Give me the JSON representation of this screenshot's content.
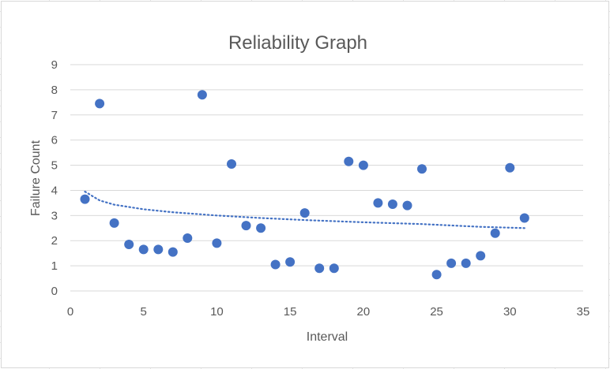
{
  "chart_data": {
    "type": "scatter",
    "title": "Reliability Graph",
    "xlabel": "Interval",
    "ylabel": "Failure Count",
    "xlim": [
      0,
      35
    ],
    "ylim": [
      0,
      9
    ],
    "xticks": [
      0,
      5,
      10,
      15,
      20,
      25,
      30,
      35
    ],
    "yticks": [
      0,
      1,
      2,
      3,
      4,
      5,
      6,
      7,
      8,
      9
    ],
    "grid": {
      "horizontal": true,
      "vertical": false
    },
    "legend": "none",
    "colors": {
      "points": "#4472C4",
      "trendline": "#4472C4",
      "gridline": "#d9d9d9",
      "text": "#595959"
    },
    "series": [
      {
        "x": [
          1,
          2,
          3,
          4,
          5,
          6,
          7,
          8,
          9,
          10,
          11,
          12,
          13,
          14,
          15,
          16,
          17,
          18,
          19,
          20,
          21,
          22,
          23,
          24,
          25,
          26,
          27,
          28,
          29,
          30,
          31
        ],
        "y": [
          3.65,
          7.45,
          2.7,
          1.85,
          1.65,
          1.65,
          1.55,
          2.1,
          7.8,
          1.9,
          5.05,
          2.6,
          2.5,
          1.05,
          1.15,
          3.1,
          0.9,
          0.9,
          5.15,
          5.0,
          3.5,
          3.45,
          3.4,
          4.85,
          0.65,
          1.1,
          1.1,
          1.4,
          2.3,
          4.9,
          2.9
        ]
      }
    ],
    "trendline": {
      "type": "logarithmic",
      "style": "dotted",
      "x": [
        1,
        2,
        3,
        5,
        7,
        10,
        13,
        16,
        20,
        24,
        28,
        31
      ],
      "y": [
        3.95,
        3.6,
        3.43,
        3.25,
        3.13,
        3.0,
        2.9,
        2.82,
        2.73,
        2.66,
        2.55,
        2.5
      ]
    }
  }
}
